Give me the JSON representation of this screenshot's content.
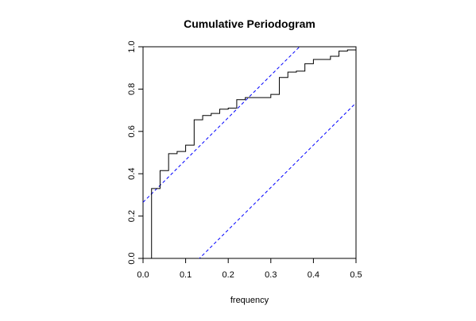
{
  "chart_data": {
    "type": "line",
    "title": "Cumulative Periodogram",
    "xlabel": "frequency",
    "ylabel": "",
    "xlim": [
      0,
      0.5
    ],
    "ylim": [
      0,
      1
    ],
    "x_ticks": [
      {
        "value": 0.0,
        "label": "0.0"
      },
      {
        "value": 0.1,
        "label": "0.1"
      },
      {
        "value": 0.2,
        "label": "0.2"
      },
      {
        "value": 0.3,
        "label": "0.3"
      },
      {
        "value": 0.4,
        "label": "0.4"
      },
      {
        "value": 0.5,
        "label": "0.5"
      }
    ],
    "y_ticks": [
      {
        "value": 0.0,
        "label": "0.0"
      },
      {
        "value": 0.2,
        "label": "0.2"
      },
      {
        "value": 0.4,
        "label": "0.4"
      },
      {
        "value": 0.6,
        "label": "0.6"
      },
      {
        "value": 0.8,
        "label": "0.8"
      },
      {
        "value": 1.0,
        "label": "1.0"
      }
    ],
    "grid": false,
    "series": [
      {
        "style": "step",
        "color": "#000000",
        "x": [
          0.02,
          0.04,
          0.06,
          0.08,
          0.1,
          0.12,
          0.14,
          0.16,
          0.18,
          0.2,
          0.22,
          0.24,
          0.26,
          0.28,
          0.3,
          0.32,
          0.34,
          0.36,
          0.38,
          0.4,
          0.42,
          0.44,
          0.46,
          0.48,
          0.5
        ],
        "y": [
          0.33,
          0.415,
          0.495,
          0.505,
          0.535,
          0.655,
          0.675,
          0.685,
          0.705,
          0.71,
          0.75,
          0.76,
          0.76,
          0.76,
          0.775,
          0.855,
          0.88,
          0.885,
          0.92,
          0.94,
          0.94,
          0.955,
          0.98,
          0.985,
          0.995
        ]
      }
    ],
    "bands": [
      {
        "style": "dashed",
        "color": "#0000ff",
        "slope": 2,
        "intercept": 0.265
      },
      {
        "style": "dashed",
        "color": "#0000ff",
        "slope": 2,
        "intercept": -0.265
      }
    ]
  }
}
